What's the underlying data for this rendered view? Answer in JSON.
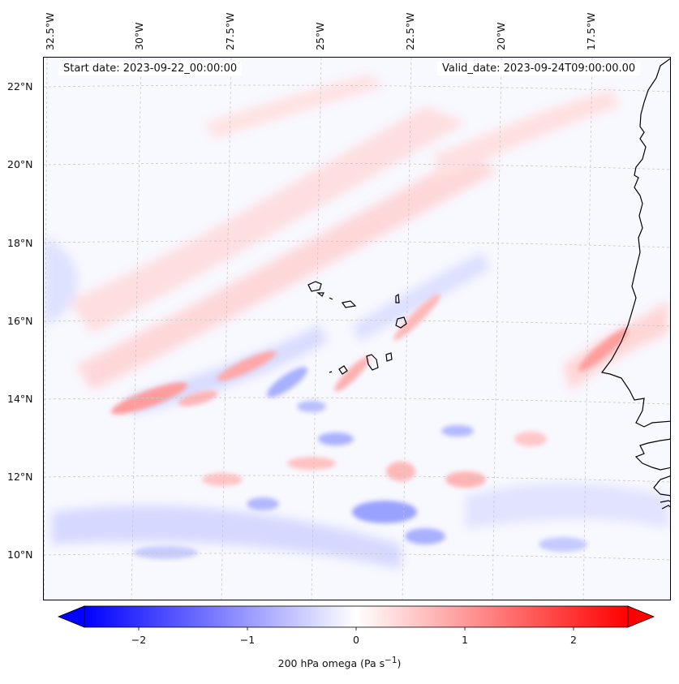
{
  "header": {
    "start_date": "Start date: 2023-09-22_00:00:00",
    "valid_date": "Valid_date: 2023-09-24T09:00:00.00"
  },
  "axes": {
    "longitude_labels": [
      "32.5°W",
      "30°W",
      "27.5°W",
      "25°W",
      "22.5°W",
      "20°W",
      "17.5°W"
    ],
    "latitude_labels": [
      "22°N",
      "20°N",
      "18°N",
      "16°N",
      "14°N",
      "12°N",
      "10°N"
    ]
  },
  "colorbar": {
    "label": "200 hPa omega (Pa s",
    "label_sup": "−1",
    "label_end": ")",
    "ticks": [
      "−2",
      "−1",
      "0",
      "1",
      "2"
    ],
    "range": [
      -2.6,
      2.6
    ],
    "min_color": "#0000ff",
    "mid_color": "#ffffff",
    "max_color": "#ff0000"
  },
  "colors": {
    "coastline": "#000000",
    "grid": "#c8c8c8",
    "background": "#f8f8ff"
  }
}
